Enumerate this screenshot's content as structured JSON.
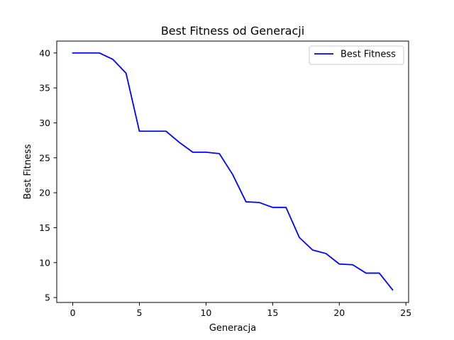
{
  "chart_data": {
    "type": "line",
    "title": "Best Fitness od Generacji",
    "xlabel": "Generacja",
    "ylabel": "Best Fitness",
    "xlim": [
      -1.2,
      25.2
    ],
    "ylim": [
      4.3,
      41.7
    ],
    "xticks": [
      0,
      5,
      10,
      15,
      20,
      25
    ],
    "yticks": [
      5,
      10,
      15,
      20,
      25,
      30,
      35,
      40
    ],
    "grid": false,
    "legend_position": "top-right",
    "series": [
      {
        "name": "Best Fitness",
        "color": "#0000ff",
        "x": [
          0,
          1,
          2,
          3,
          4,
          5,
          6,
          7,
          8,
          9,
          10,
          11,
          12,
          13,
          14,
          15,
          16,
          17,
          18,
          19,
          20,
          21,
          22,
          23,
          24
        ],
        "y": [
          40,
          40,
          40,
          39.1,
          37.1,
          28.8,
          28.8,
          28.8,
          27.2,
          25.8,
          25.8,
          25.6,
          22.6,
          18.7,
          18.6,
          17.9,
          17.9,
          13.6,
          11.8,
          11.3,
          9.8,
          9.7,
          8.5,
          8.5,
          6.1
        ]
      }
    ]
  }
}
